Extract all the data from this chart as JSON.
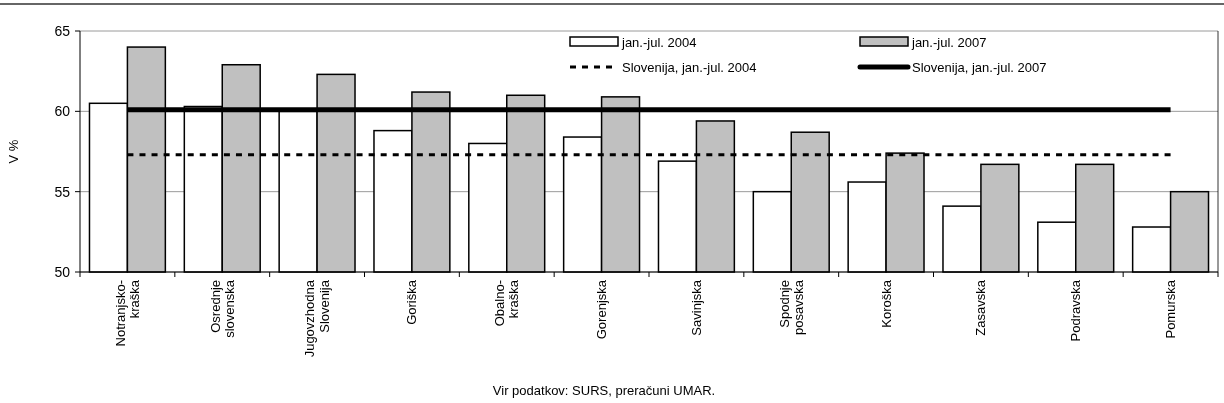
{
  "chart_data": {
    "type": "bar",
    "ylabel": "V %",
    "categories": [
      "Notranjsko-\nkraška",
      "Osrednje\nslovenska",
      "Jugovzhodna\nSlovenija",
      "Goriška",
      "Obalno-\nkraška",
      "Gorenjska",
      "Savinjska",
      "Spodnje\nposavska",
      "Koroška",
      "Zasavska",
      "Podravska",
      "Pomurska"
    ],
    "series": [
      {
        "name": "jan.-jul. 2004",
        "color": "#ffffff",
        "values": [
          60.5,
          60.3,
          60.0,
          58.8,
          58.0,
          58.4,
          56.9,
          55.0,
          55.6,
          54.1,
          53.1,
          52.8
        ]
      },
      {
        "name": "jan.-jul. 2007",
        "color": "#c0c0c0",
        "values": [
          64.0,
          62.9,
          62.3,
          61.2,
          61.0,
          60.9,
          59.4,
          58.7,
          57.4,
          56.7,
          56.7,
          55.0
        ]
      },
      {
        "name": "Slovenija, jan.-jul. 2004",
        "type": "line",
        "line_style": "dashed",
        "color": "#000000",
        "values": [
          57.3,
          57.3,
          57.3,
          57.3,
          57.3,
          57.3,
          57.3,
          57.3,
          57.3,
          57.3,
          57.3,
          57.3
        ]
      },
      {
        "name": "Slovenija, jan.-jul. 2007",
        "type": "line",
        "line_style": "solid",
        "color": "#000000",
        "values": [
          60.1,
          60.1,
          60.1,
          60.1,
          60.1,
          60.1,
          60.1,
          60.1,
          60.1,
          60.1,
          60.1,
          60.1
        ]
      }
    ],
    "ylim": [
      50,
      65
    ],
    "yticks": [
      50,
      55,
      60,
      65
    ],
    "grid": "y",
    "legend": "top right",
    "marker": "none",
    "annotations": [
      "Vir podatkov: SURS, preračuni UMAR."
    ]
  }
}
